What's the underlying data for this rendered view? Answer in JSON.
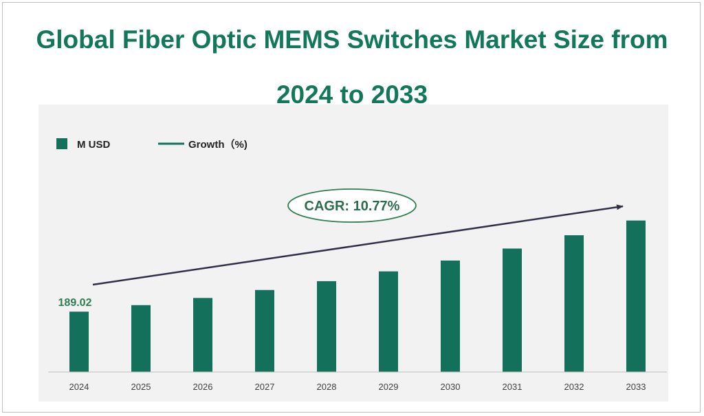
{
  "title": {
    "line1": "Global Fiber Optic MEMS Switches Market Size from",
    "line2": "2024 to 2033"
  },
  "legend": {
    "bar_label": "M USD",
    "line_label": "Growth（%)"
  },
  "cagr_label": "CAGR: 10.77%",
  "colors": {
    "bar": "#13705a",
    "title": "#13775a",
    "trend_arrow": "#2f2f4a",
    "plot_background": "#f2f2f2"
  },
  "chart_data": {
    "type": "bar",
    "categories": [
      "2024",
      "2025",
      "2026",
      "2027",
      "2028",
      "2029",
      "2030",
      "2031",
      "2032",
      "2033"
    ],
    "series": [
      {
        "name": "M USD",
        "values": [
          189.02,
          209.4,
          231.9,
          256.9,
          284.5,
          315.2,
          349.1,
          386.7,
          428.4,
          474.5
        ]
      }
    ],
    "data_labels": [
      {
        "category": "2024",
        "text": "189.02"
      }
    ],
    "trend_annotation": "CAGR: 10.77%",
    "ylim": [
      0,
      560
    ],
    "grid": false,
    "legend_position": "top-left"
  }
}
